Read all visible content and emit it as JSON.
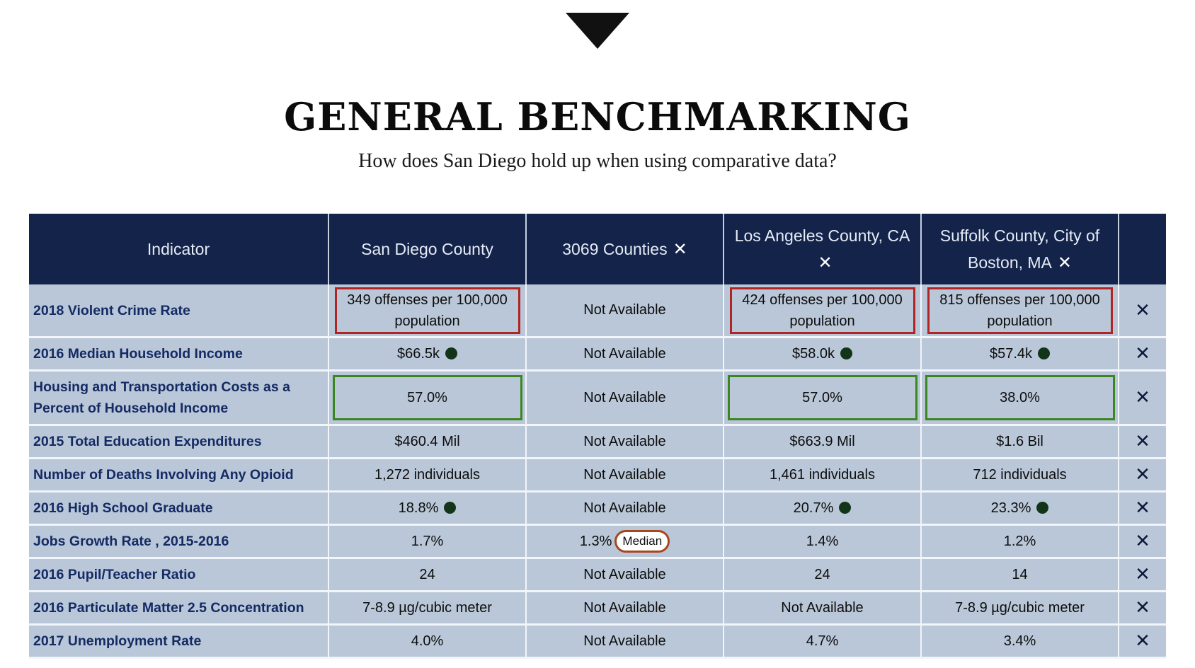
{
  "header": {
    "title": "GENERAL BENCHMARKING",
    "subtitle": "How does San Diego hold up when using comparative data?"
  },
  "icons": {
    "collapse": "triangle-down-icon",
    "remove": "close-x-icon",
    "status": "filled-circle-icon"
  },
  "colors": {
    "header_bg": "#14234a",
    "row_bg": "#b9c7d8",
    "red_outline": "#b02423",
    "green_outline": "#3a861f",
    "indicator_text": "#142a63"
  },
  "table": {
    "columns": {
      "indicator": "Indicator",
      "col1": "San Diego County",
      "col2": "3069 Counties",
      "col3": "Los Angeles County, CA",
      "col4": "Suffolk County, City of Boston, MA"
    },
    "remove_glyph": "✕",
    "rows": [
      {
        "indicator": "2018 Violent Crime Rate",
        "c1": "349 offenses per 100,000 population",
        "c2": "Not Available",
        "c3": "424 offenses per 100,000 population",
        "c4": "815 offenses per 100,000 population"
      },
      {
        "indicator": "2016 Median Household Income",
        "c1": "$66.5k",
        "c2": "Not Available",
        "c3": "$58.0k",
        "c4": "$57.4k"
      },
      {
        "indicator": "Housing and Transportation Costs as a Percent of Household Income",
        "c1": "57.0%",
        "c2": "Not Available",
        "c3": "57.0%",
        "c4": "38.0%"
      },
      {
        "indicator": "2015 Total Education Expenditures",
        "c1": "$460.4 Mil",
        "c2": "Not Available",
        "c3": "$663.9 Mil",
        "c4": "$1.6 Bil"
      },
      {
        "indicator": "Number of Deaths Involving Any Opioid",
        "c1": "1,272 individuals",
        "c2": "Not Available",
        "c3": "1,461 individuals",
        "c4": "712 individuals"
      },
      {
        "indicator": "2016 High School Graduate",
        "c1": "18.8%",
        "c2": "Not Available",
        "c3": "20.7%",
        "c4": "23.3%"
      },
      {
        "indicator": "Jobs Growth Rate , 2015-2016",
        "c1": "1.7%",
        "c2": "1.3%",
        "c2_badge": "Median",
        "c3": "1.4%",
        "c4": "1.2%"
      },
      {
        "indicator": "2016 Pupil/Teacher Ratio",
        "c1": "24",
        "c2": "Not Available",
        "c3": "24",
        "c4": "14"
      },
      {
        "indicator": "2016 Particulate Matter 2.5 Concentration",
        "c1": "7-8.9 µg/cubic meter",
        "c2": "Not Available",
        "c3": "Not Available",
        "c4": "7-8.9 µg/cubic meter"
      },
      {
        "indicator": "2017 Unemployment Rate",
        "c1": "4.0%",
        "c2": "Not Available",
        "c3": "4.7%",
        "c4": "3.4%"
      }
    ]
  }
}
